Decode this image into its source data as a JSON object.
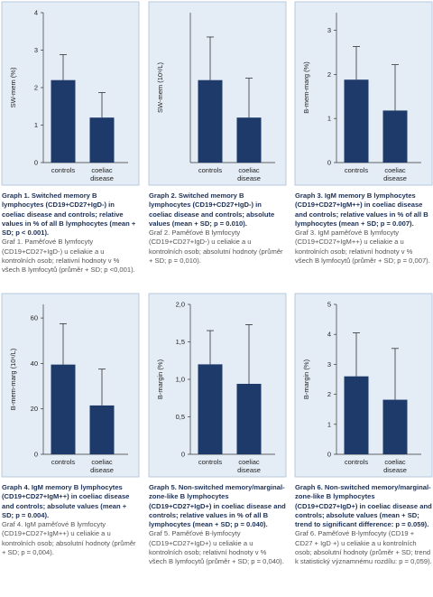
{
  "chart_data": [
    {
      "type": "bar",
      "ylabel": "SW-mem (%)",
      "categories": [
        "controls",
        "coeliac disease"
      ],
      "values": [
        2.2,
        1.2
      ],
      "errors": [
        0.68,
        0.67
      ],
      "color": "#1e3a6b",
      "ylim": [
        0,
        4
      ],
      "yticks": [
        0,
        1,
        2,
        3,
        4
      ],
      "caption": "Graph 1. Switched memory B lymphocytes (CD19+CD27+IgD-) in coeliac disease and controls; relative values in % of all B lymphocytes (mean + SD; p < 0.001).",
      "caption_cz": "Graf 1. Paměťové B lymfocyty (CD19+CD27+IgD-) u celiakie a u kontrolních osob; relativní hodnoty v % všech B lymfocytů (průměr + SD; p <0,001)."
    },
    {
      "type": "bar",
      "ylabel": "SW-mem (10⁹/L)",
      "categories": [
        "controls",
        "coeliac disease"
      ],
      "values": [
        4.4,
        2.4
      ],
      "errors": [
        2.3,
        2.1
      ],
      "color": "#1e3a6b",
      "ylim": [
        0,
        8
      ],
      "caption": "Graph 2. Switched memory B lymphocytes (CD19+CD27+IgD-) in coeliac disease and controls; absolute values (mean + SD; p = 0.010).",
      "caption_cz": "Graf 2. Paměťové B lymfocyty (CD19+CD27+IgD-) u celiakie a u kontrolních osob; absolutní hodnoty (průměr + SD; p = 0,010)."
    },
    {
      "type": "bar",
      "ylabel": "B-mem-marg (%)",
      "categories": [
        "controls",
        "coeliac disease"
      ],
      "values": [
        1.88,
        1.18
      ],
      "errors": [
        0.75,
        1.04
      ],
      "color": "#1e3a6b",
      "ylim": [
        0,
        3.4
      ],
      "yticks": [
        0,
        1,
        2,
        3
      ],
      "caption": "Graph 3. IgM memory B lymphocytes (CD19+CD27+IgM++) in coeliac disease and controls; relative values in % of all B lymphocytes (mean + SD; p = 0.007).",
      "caption_cz": "Graf 3. IgM paměťové B lymfocyty (CD19+CD27+IgM++) u celiakie a u kontrolních osob; relativní hodnoty v % všech B lymfocytů (průměr + SD; p = 0,007)."
    },
    {
      "type": "bar",
      "ylabel": "B-mem-marg (10⁶/L)",
      "categories": [
        "controls",
        "coeliac disease"
      ],
      "values": [
        39.5,
        21.5
      ],
      "errors": [
        18,
        16
      ],
      "color": "#1e3a6b",
      "ylim": [
        0,
        66
      ],
      "yticks": [
        0,
        20,
        40,
        60
      ],
      "caption": "Graph 4. IgM memory B lymphocytes (CD19+CD27+IgM++) in coeliac disease and controls; absolute values (mean + SD; p = 0.004).",
      "caption_cz": "Graf 4. IgM paměťové B lymfocyty (CD19+CD27+IgM++) u celiakie a u kontrolních osob; absolutní hodnoty (průměr + SD; p = 0,004)."
    },
    {
      "type": "bar",
      "ylabel": "B-margin (%)",
      "categories": [
        "controls",
        "coeliac disease"
      ],
      "values": [
        1.2,
        0.94
      ],
      "errors": [
        0.45,
        0.79
      ],
      "color": "#1e3a6b",
      "ylim": [
        0,
        2
      ],
      "yticks": [
        0,
        {
          "value": 0.5,
          "label": "0,5"
        },
        {
          "value": 1,
          "label": "1,0"
        },
        {
          "value": 1.5,
          "label": "1,5"
        },
        {
          "value": 2,
          "label": "2,0"
        }
      ],
      "caption": "Graph 5. Non-switched memory/marginal-zone-like B lymphocytes (CD19+CD27+IgD+) in coeliac disease and controls; relative values in % of all B lymphocytes (mean + SD; p = 0.040).",
      "caption_cz": "Graf 5. Paměťové B-lymfocyty (CD19+CD27+IgD+) u celiakie a u kontrolních osob; relativní hodnoty v % všech B lymfocytů (průměr + SD; p = 0,040)."
    },
    {
      "type": "bar",
      "ylabel": "B-margin (%)",
      "categories": [
        "controls",
        "coeliac disease"
      ],
      "values": [
        2.6,
        1.82
      ],
      "errors": [
        1.45,
        1.71
      ],
      "color": "#1e3a6b",
      "ylim": [
        0,
        5
      ],
      "yticks": [
        0,
        1,
        2,
        3,
        4,
        5
      ],
      "caption": "Graph 6. Non-switched memory/marginal-zone-like B lymphocytes (CD19+CD27+IgD+) in coeliac disease and controls; absolute values (mean + SD; trend to significant difference: p = 0.059).",
      "caption_cz": "Graf 6. Paměťové B-lymfocyty (CD19 + CD27 + IgD +) u celiakie a u kontrolních osob; absolutní hodnoty (průměr + SD; trend k statistický významnému rozdílu: p = 0,059)."
    }
  ]
}
